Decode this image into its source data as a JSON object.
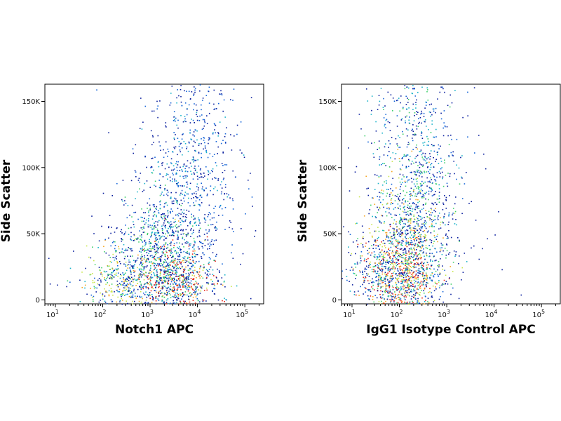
{
  "chart_data": [
    {
      "type": "scatter",
      "subtype": "flow-cytometry-density-dot-plot",
      "title": "",
      "xlabel": "Notch1 APC",
      "ylabel": "Side Scatter",
      "x_scale": "log",
      "xlim": [
        6,
        250000
      ],
      "ylim": [
        -3000,
        163000
      ],
      "x_ticks": [
        10,
        100,
        1000,
        10000,
        100000
      ],
      "x_tick_labels": [
        {
          "base": "10",
          "exp": "1"
        },
        {
          "base": "10",
          "exp": "2"
        },
        {
          "base": "10",
          "exp": "3"
        },
        {
          "base": "10",
          "exp": "4"
        },
        {
          "base": "10",
          "exp": "5"
        }
      ],
      "y_ticks": [
        0,
        50000,
        100000,
        150000
      ],
      "y_tick_labels": [
        "0",
        "50K",
        "100K",
        "150K"
      ],
      "grid": false,
      "colormap": [
        "#0a1f9e",
        "#1565d8",
        "#19b3c9",
        "#3fd06b",
        "#c8e64a",
        "#f5a623",
        "#e8281c"
      ],
      "populations": [
        {
          "x": 3000,
          "y": 15000,
          "share": 0.28,
          "peak_density": 1.0
        },
        {
          "x": 250,
          "y": 14000,
          "share": 0.16,
          "peak_density": 0.75
        },
        {
          "x": 1500,
          "y": 40000,
          "share": 0.22,
          "peak_density": 0.55
        },
        {
          "x": 5000,
          "y": 75000,
          "share": 0.18,
          "peak_density": 0.35
        },
        {
          "x": 10000,
          "y": 120000,
          "share": 0.16,
          "peak_density": 0.3
        }
      ]
    },
    {
      "type": "scatter",
      "subtype": "flow-cytometry-density-dot-plot",
      "title": "",
      "xlabel": "IgG1 Isotype Control APC",
      "ylabel": "Side Scatter",
      "x_scale": "log",
      "xlim": [
        6,
        250000
      ],
      "ylim": [
        -3000,
        163000
      ],
      "x_ticks": [
        10,
        100,
        1000,
        10000,
        100000
      ],
      "x_tick_labels": [
        {
          "base": "10",
          "exp": "1"
        },
        {
          "base": "10",
          "exp": "2"
        },
        {
          "base": "10",
          "exp": "3"
        },
        {
          "base": "10",
          "exp": "4"
        },
        {
          "base": "10",
          "exp": "5"
        }
      ],
      "y_ticks": [
        0,
        50000,
        100000,
        150000
      ],
      "y_tick_labels": [
        "0",
        "50K",
        "100K",
        "150K"
      ],
      "grid": false,
      "colormap": [
        "#0a1f9e",
        "#1565d8",
        "#19b3c9",
        "#3fd06b",
        "#c8e64a",
        "#f5a623",
        "#e8281c"
      ],
      "populations": [
        {
          "x": 100,
          "y": 18000,
          "share": 0.35,
          "peak_density": 1.0
        },
        {
          "x": 150,
          "y": 45000,
          "share": 0.3,
          "peak_density": 0.8
        },
        {
          "x": 200,
          "y": 90000,
          "share": 0.22,
          "peak_density": 0.5
        },
        {
          "x": 250,
          "y": 135000,
          "share": 0.13,
          "peak_density": 0.35
        }
      ]
    }
  ]
}
